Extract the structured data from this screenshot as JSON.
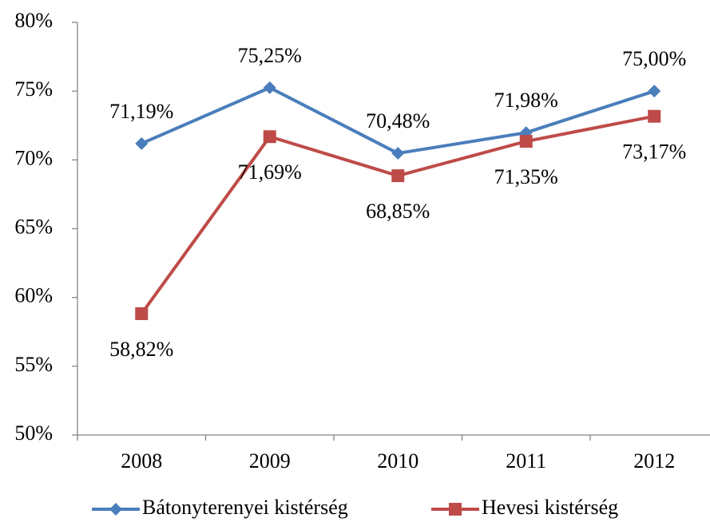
{
  "chart_data": {
    "type": "line",
    "categories": [
      "2008",
      "2009",
      "2010",
      "2011",
      "2012"
    ],
    "series": [
      {
        "name": "Bátonyterenyei kistérség",
        "color": "#4a7ebb",
        "marker": "diamond",
        "values": [
          71.19,
          75.25,
          70.48,
          71.98,
          75.0
        ],
        "value_labels": [
          "71,19%",
          "75,25%",
          "70,48%",
          "71,98%",
          "75,00%"
        ]
      },
      {
        "name": "Hevesi kistérség",
        "color": "#be4b48",
        "marker": "square",
        "values": [
          58.82,
          71.69,
          68.85,
          71.35,
          73.17
        ],
        "value_labels": [
          "58,82%",
          "71,69%",
          "68,85%",
          "71,35%",
          "73,17%"
        ]
      }
    ],
    "ylim": [
      50,
      80
    ],
    "yticks": [
      {
        "value": 50,
        "label": "50%"
      },
      {
        "value": 55,
        "label": "55%"
      },
      {
        "value": 60,
        "label": "60%"
      },
      {
        "value": 65,
        "label": "65%"
      },
      {
        "value": 70,
        "label": "70%"
      },
      {
        "value": 75,
        "label": "75%"
      },
      {
        "value": 80,
        "label": "80%"
      }
    ],
    "grid": false,
    "legend": "bottom"
  }
}
